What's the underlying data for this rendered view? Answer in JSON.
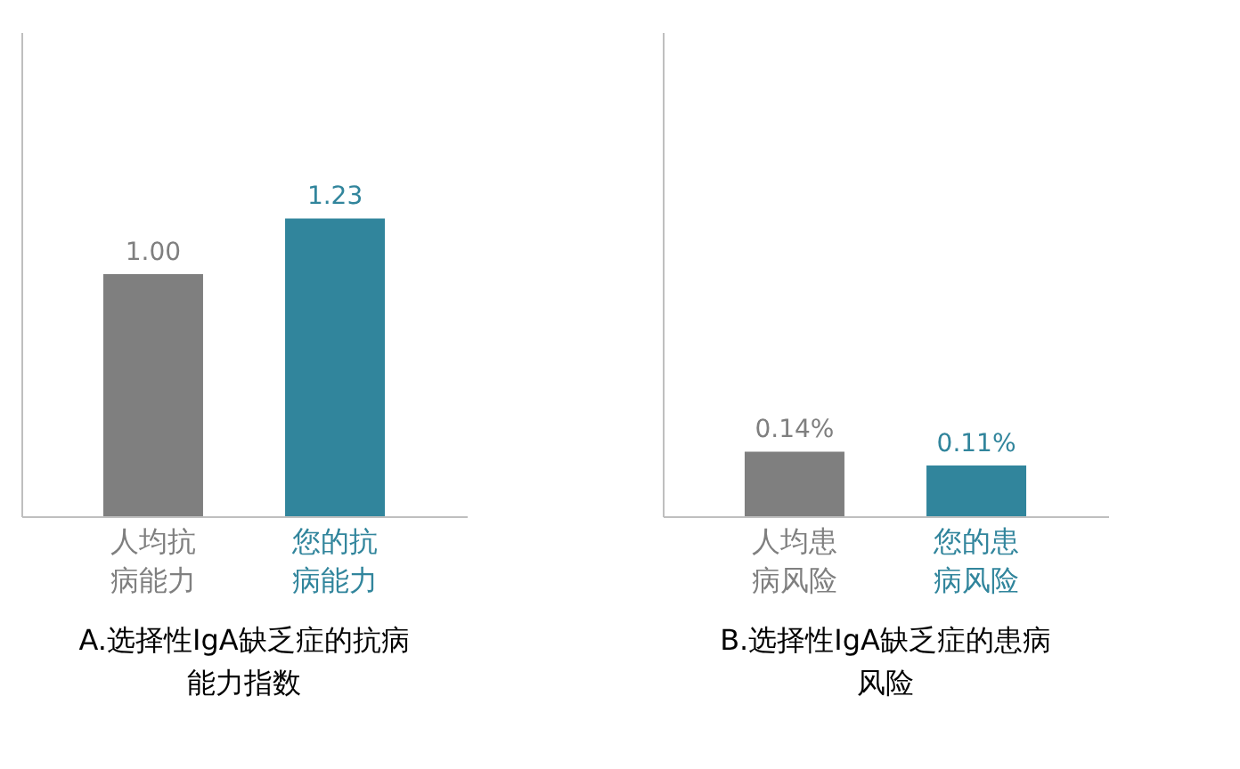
{
  "chart_data": [
    {
      "type": "bar",
      "title": "A.选择性IgA缺乏症的抗病能力指数",
      "categories": [
        "人均抗病能力",
        "您的抗病能力"
      ],
      "values": [
        1.0,
        1.23
      ],
      "value_labels": [
        "1.00",
        "1.23"
      ],
      "colors": [
        "#7f7f7f",
        "#31859c"
      ],
      "ylim": [
        0,
        2
      ],
      "tick_labels": "x"
    },
    {
      "type": "bar",
      "title": "B.选择性IgA缺乏症的患病风险",
      "categories": [
        "人均患病风险",
        "您的患病风险"
      ],
      "values": [
        0.14,
        0.11
      ],
      "value_labels": [
        "0.14%",
        "0.11%"
      ],
      "colors": [
        "#7f7f7f",
        "#31859c"
      ],
      "ylim": [
        0,
        1.05
      ],
      "tick_labels": "x"
    }
  ]
}
